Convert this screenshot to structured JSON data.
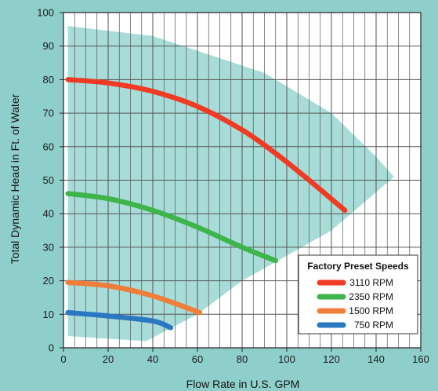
{
  "chart_data": {
    "type": "line",
    "xlabel": "Flow Rate in U.S. GPM",
    "ylabel": "Total Dynamic Head in Ft. of Water",
    "xlim": [
      0,
      160
    ],
    "ylim": [
      0,
      100
    ],
    "x_ticks": [
      "0",
      "20",
      "40",
      "60",
      "80",
      "100",
      "120",
      "140",
      "160"
    ],
    "y_ticks": [
      "0",
      "10",
      "20",
      "30",
      "40",
      "50",
      "60",
      "70",
      "80",
      "90",
      "100"
    ],
    "grid": true,
    "legend": {
      "title": "Factory Preset Speeds",
      "placement": "bottom-right"
    },
    "operating_region": [
      [
        2,
        96
      ],
      [
        40,
        93
      ],
      [
        90,
        82
      ],
      [
        120,
        70
      ],
      [
        140,
        57
      ],
      [
        148,
        51
      ],
      [
        120,
        35
      ],
      [
        80,
        20
      ],
      [
        60,
        10
      ],
      [
        37,
        2
      ],
      [
        2,
        3.5
      ]
    ],
    "series": [
      {
        "name": "3110 RPM",
        "color": "#f03b24",
        "x": [
          2,
          20,
          40,
          60,
          80,
          95,
          110,
          126
        ],
        "y": [
          80,
          79,
          76.5,
          72,
          65,
          58,
          50,
          41
        ]
      },
      {
        "name": "2350 RPM",
        "color": "#3db54a",
        "x": [
          2,
          20,
          40,
          60,
          80,
          95
        ],
        "y": [
          46,
          44.5,
          41,
          36,
          30,
          26
        ]
      },
      {
        "name": "1500 RPM",
        "color": "#f07d3a",
        "x": [
          2,
          20,
          40,
          61
        ],
        "y": [
          19.5,
          18.5,
          15.5,
          10.5
        ]
      },
      {
        "name": "750 RPM",
        "color": "#2a78c2",
        "x": [
          2,
          20,
          40,
          48
        ],
        "y": [
          10.5,
          9.5,
          8,
          6
        ]
      }
    ]
  },
  "colors": {
    "background": "#8fcfcb",
    "plot_area": "#ffffff",
    "region": "#a8dcd8",
    "grid": "#555555"
  }
}
